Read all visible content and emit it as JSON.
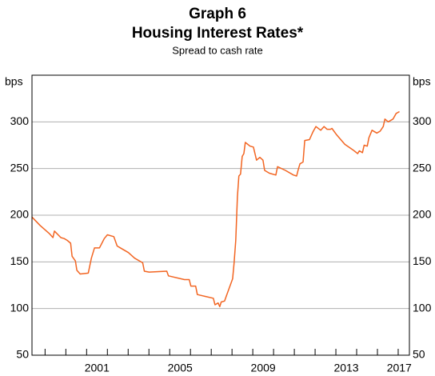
{
  "chart_data": {
    "type": "line",
    "title": "Graph 6",
    "subtitle": "Housing Interest Rates*",
    "note": "Spread to cash rate",
    "ylabel": "bps",
    "y2label": "bps",
    "xlim": [
      1998.37,
      2016.54
    ],
    "ylim": [
      50,
      350
    ],
    "y2lim": [
      50,
      350
    ],
    "yticks": [
      50,
      100,
      150,
      200,
      250,
      300
    ],
    "y2ticks": [
      50,
      100,
      150,
      200,
      250,
      300
    ],
    "xticks": [
      {
        "value": 2001.5,
        "label": "2001"
      },
      {
        "value": 2005.5,
        "label": "2005"
      },
      {
        "value": 2009.5,
        "label": "2009"
      },
      {
        "value": 2013.5,
        "label": "2013"
      },
      {
        "value": 2016.05,
        "label": "2017"
      }
    ],
    "xminorticks": [
      1999,
      2000,
      2001,
      2002,
      2003,
      2004,
      2005,
      2006,
      2007,
      2008,
      2009,
      2010,
      2011,
      2012,
      2013,
      2014,
      2015,
      2016
    ],
    "grid": true,
    "series": [
      {
        "color": "#f26522",
        "x": [
          1998.37,
          1998.76,
          1999.22,
          1999.38,
          1999.45,
          1999.76,
          1999.92,
          2000.07,
          2000.23,
          2000.3,
          2000.46,
          2000.53,
          2000.69,
          2001.08,
          2001.23,
          2001.38,
          2001.62,
          2001.85,
          2002.0,
          2002.31,
          2002.47,
          2002.62,
          2003.01,
          2003.31,
          2003.7,
          2003.78,
          2004.01,
          2004.86,
          2004.94,
          2005.71,
          2005.94,
          2006.02,
          2006.25,
          2006.33,
          2006.71,
          2007.1,
          2007.18,
          2007.33,
          2007.41,
          2007.48,
          2007.64,
          2007.72,
          2008.03,
          2008.1,
          2008.18,
          2008.26,
          2008.33,
          2008.41,
          2008.49,
          2008.57,
          2008.64,
          2008.87,
          2009.03,
          2009.18,
          2009.34,
          2009.49,
          2009.57,
          2009.8,
          2010.11,
          2010.19,
          2010.57,
          2010.96,
          2011.11,
          2011.19,
          2011.27,
          2011.42,
          2011.5,
          2011.73,
          2011.89,
          2012.04,
          2012.27,
          2012.43,
          2012.58,
          2012.74,
          2012.81,
          2013.04,
          2013.43,
          2013.82,
          2014.05,
          2014.13,
          2014.28,
          2014.36,
          2014.51,
          2014.59,
          2014.74,
          2014.97,
          2015.13,
          2015.28,
          2015.36,
          2015.52,
          2015.75,
          2015.9,
          2016.06
        ],
        "values": [
          198,
          189,
          180,
          176,
          183,
          176,
          175,
          173,
          170,
          156,
          151,
          141,
          137,
          138,
          154,
          165,
          165,
          175,
          179,
          177,
          167,
          165,
          160,
          154,
          149,
          140,
          139,
          140,
          135,
          131,
          131,
          124,
          124,
          115,
          113,
          111,
          104,
          106,
          102,
          107,
          108,
          113,
          132,
          149,
          173,
          220,
          242,
          244,
          263,
          266,
          278,
          274,
          273,
          259,
          262,
          259,
          248,
          245,
          243,
          252,
          248,
          243,
          242,
          249,
          255,
          257,
          280,
          281,
          289,
          295,
          291,
          295,
          292,
          292,
          293,
          286,
          276,
          270,
          266,
          269,
          267,
          275,
          274,
          283,
          291,
          288,
          290,
          295,
          303,
          300,
          303,
          309,
          311
        ]
      }
    ]
  }
}
